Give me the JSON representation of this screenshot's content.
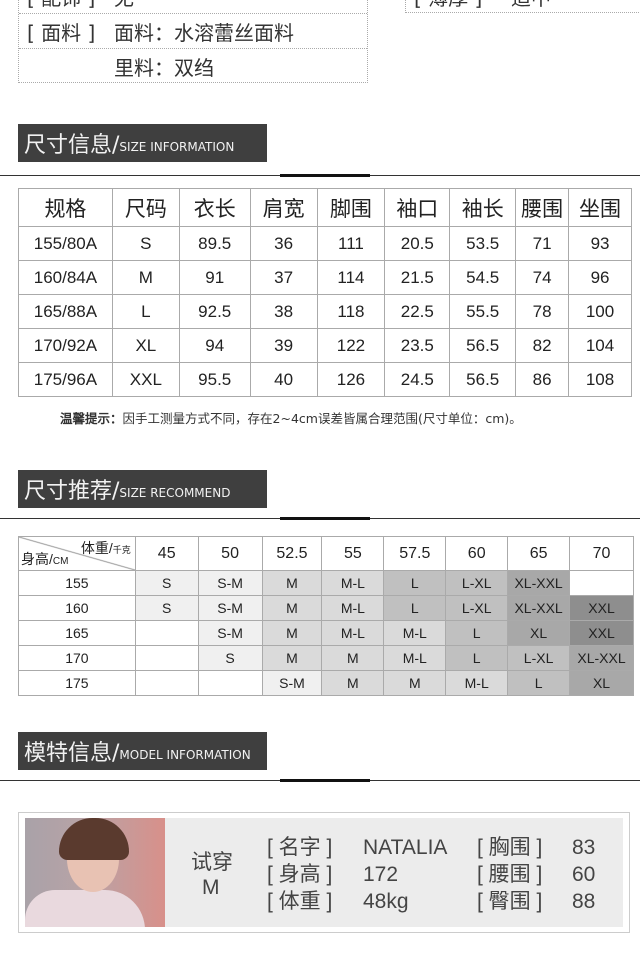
{
  "attributes": {
    "left": [
      {
        "key": "[ 配饰 ]",
        "value": "无"
      },
      {
        "key": "[ 面料 ]",
        "value": "面料：水溶蕾丝面料"
      },
      {
        "key": "",
        "value": "里料：双绉"
      }
    ],
    "right": [
      {
        "key": "[ 薄厚 ]",
        "value": "适中"
      }
    ]
  },
  "sections": {
    "size_info": {
      "cn": "尺寸信息/",
      "en": "SIZE INFORMATION"
    },
    "size_recommend": {
      "cn": "尺寸推荐/",
      "en": "SIZE RECOMMEND"
    },
    "model_info": {
      "cn": "模特信息/",
      "en": "MODEL INFORMATION"
    }
  },
  "size_table": {
    "headers": [
      "规格",
      "尺码",
      "衣长",
      "肩宽",
      "脚围",
      "袖口",
      "袖长",
      "腰围",
      "坐围"
    ],
    "rows": [
      [
        "155/80A",
        "S",
        "89.5",
        "36",
        "111",
        "20.5",
        "53.5",
        "71",
        "93"
      ],
      [
        "160/84A",
        "M",
        "91",
        "37",
        "114",
        "21.5",
        "54.5",
        "74",
        "96"
      ],
      [
        "165/88A",
        "L",
        "92.5",
        "38",
        "118",
        "22.5",
        "55.5",
        "78",
        "100"
      ],
      [
        "170/92A",
        "XL",
        "94",
        "39",
        "122",
        "23.5",
        "56.5",
        "82",
        "104"
      ],
      [
        "175/96A",
        "XXL",
        "95.5",
        "40",
        "126",
        "24.5",
        "56.5",
        "86",
        "108"
      ]
    ]
  },
  "note": {
    "label": "温馨提示：",
    "text": "因手工测量方式不同，存在2~4cm误差皆属合理范围(尺寸单位：cm)。"
  },
  "recommend_table": {
    "corner_weight": "体重/",
    "corner_weight_unit": "千克",
    "corner_height": "身高/",
    "corner_height_unit": "CM",
    "weights": [
      "45",
      "50",
      "52.5",
      "55",
      "57.5",
      "60",
      "65",
      "70"
    ],
    "rows": [
      {
        "height": "155",
        "sizes": [
          "S",
          "S-M",
          "M",
          "M-L",
          "L",
          "L-XL",
          "XL-XXL",
          ""
        ]
      },
      {
        "height": "160",
        "sizes": [
          "S",
          "S-M",
          "M",
          "M-L",
          "L",
          "L-XL",
          "XL-XXL",
          "XXL"
        ]
      },
      {
        "height": "165",
        "sizes": [
          "",
          "S-M",
          "M",
          "M-L",
          "M-L",
          "L",
          "XL",
          "XXL"
        ]
      },
      {
        "height": "170",
        "sizes": [
          "",
          "S",
          "M",
          "M",
          "M-L",
          "L",
          "L-XL",
          "XL-XXL"
        ]
      },
      {
        "height": "175",
        "sizes": [
          "",
          "",
          "S-M",
          "M",
          "M",
          "M-L",
          "L",
          "XL"
        ]
      }
    ],
    "shade_colors": {
      "S": "#f0f0f0",
      "S-M": "#f0f0f0",
      "M": "#dadada",
      "M-L": "#dadada",
      "L": "#c0c0c0",
      "L-XL": "#c0c0c0",
      "XL": "#a8a8a8",
      "XL-XXL": "#a8a8a8",
      "XXL": "#8e8e8e",
      "": "#ffffff"
    }
  },
  "model": {
    "try_label": "试穿",
    "try_size": "M",
    "fields": [
      {
        "key": "[ 名字 ]",
        "value": "NATALIA"
      },
      {
        "key": "[ 身高 ]",
        "value": "172"
      },
      {
        "key": "[ 体重 ]",
        "value": "48kg"
      },
      {
        "key": "[ 胸围 ]",
        "value": "83"
      },
      {
        "key": "[ 腰围 ]",
        "value": "60"
      },
      {
        "key": "[ 臀围 ]",
        "value": "88"
      }
    ]
  }
}
